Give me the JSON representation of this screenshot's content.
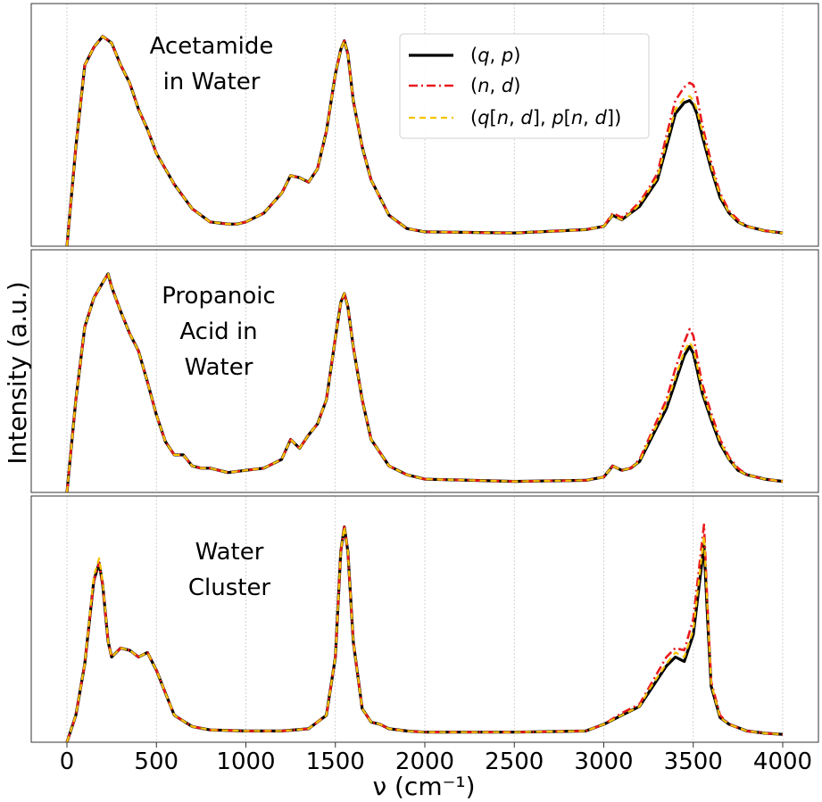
{
  "chart_data": {
    "type": "line",
    "xlabel": "ν (cm⁻¹)",
    "ylabel": "Intensity (a.u.)",
    "xlim": [
      -200,
      4200
    ],
    "x_ticks": [
      0,
      500,
      1000,
      1500,
      2000,
      2500,
      3000,
      3500,
      4000
    ],
    "x_tick_labels": [
      "0",
      "500",
      "1000",
      "1500",
      "2000",
      "2500",
      "3000",
      "3500",
      "4000"
    ],
    "grid": true,
    "legend_location": "top-right of first panel",
    "series_styles": [
      {
        "name": "(q, p)",
        "color": "#000000",
        "dash": "solid"
      },
      {
        "name": "(n, d)",
        "color": "#e8191e",
        "dash": "dashdot"
      },
      {
        "name": "(q[n, d], p[n, d])",
        "color": "#f5c400",
        "dash": "dashed"
      }
    ],
    "legend": [
      {
        "prefix": "(",
        "a": "q",
        "sep": ", ",
        "b": "p",
        "suffix": ")"
      },
      {
        "prefix": "(",
        "a": "n",
        "sep": ", ",
        "b": "d",
        "suffix": ")"
      },
      {
        "prefix": "(",
        "a": "q",
        "mid1": "[",
        "a2": "n",
        "mid2": ", ",
        "b2": "d",
        "mid3": "], ",
        "b": "p",
        "mid4": "[",
        "a3": "n",
        "mid5": ", ",
        "b3": "d",
        "suffix": "])"
      }
    ],
    "panels": [
      {
        "label_lines": [
          "Acetamide",
          "in Water"
        ],
        "ylim": [
          0,
          1.05
        ],
        "x": [
          0,
          50,
          100,
          150,
          200,
          250,
          300,
          350,
          400,
          450,
          500,
          600,
          700,
          800,
          900,
          950,
          1000,
          1100,
          1200,
          1250,
          1300,
          1350,
          1400,
          1450,
          1500,
          1530,
          1550,
          1570,
          1600,
          1650,
          1700,
          1800,
          1900,
          2000,
          2500,
          2900,
          3000,
          3050,
          3100,
          3150,
          3200,
          3250,
          3300,
          3350,
          3400,
          3450,
          3480,
          3500,
          3520,
          3550,
          3600,
          3650,
          3700,
          3750,
          3800,
          3900,
          4000
        ],
        "series": [
          {
            "name": "(q, p)",
            "values": [
              0.0,
              0.45,
              0.82,
              0.9,
              0.95,
              0.92,
              0.82,
              0.74,
              0.62,
              0.53,
              0.42,
              0.28,
              0.17,
              0.11,
              0.1,
              0.1,
              0.11,
              0.15,
              0.24,
              0.32,
              0.31,
              0.29,
              0.35,
              0.52,
              0.78,
              0.89,
              0.93,
              0.87,
              0.66,
              0.45,
              0.3,
              0.14,
              0.08,
              0.065,
              0.06,
              0.075,
              0.09,
              0.14,
              0.12,
              0.15,
              0.18,
              0.24,
              0.3,
              0.45,
              0.6,
              0.65,
              0.66,
              0.64,
              0.6,
              0.5,
              0.35,
              0.22,
              0.15,
              0.11,
              0.09,
              0.07,
              0.06
            ]
          },
          {
            "name": "(n, d)",
            "values": [
              0.0,
              0.45,
              0.82,
              0.9,
              0.95,
              0.92,
              0.82,
              0.74,
              0.62,
              0.53,
              0.42,
              0.28,
              0.17,
              0.11,
              0.1,
              0.1,
              0.11,
              0.15,
              0.24,
              0.32,
              0.31,
              0.29,
              0.35,
              0.52,
              0.78,
              0.89,
              0.93,
              0.87,
              0.66,
              0.45,
              0.3,
              0.14,
              0.08,
              0.065,
              0.06,
              0.075,
              0.09,
              0.15,
              0.13,
              0.16,
              0.2,
              0.26,
              0.33,
              0.5,
              0.66,
              0.72,
              0.74,
              0.73,
              0.68,
              0.55,
              0.38,
              0.24,
              0.16,
              0.12,
              0.09,
              0.07,
              0.06
            ]
          },
          {
            "name": "(q[n, d], p[n, d])",
            "values": [
              0.0,
              0.45,
              0.82,
              0.9,
              0.95,
              0.92,
              0.82,
              0.74,
              0.62,
              0.53,
              0.42,
              0.28,
              0.17,
              0.11,
              0.1,
              0.1,
              0.11,
              0.15,
              0.24,
              0.32,
              0.31,
              0.29,
              0.35,
              0.52,
              0.78,
              0.89,
              0.93,
              0.87,
              0.66,
              0.45,
              0.3,
              0.14,
              0.08,
              0.065,
              0.06,
              0.075,
              0.09,
              0.14,
              0.12,
              0.15,
              0.19,
              0.25,
              0.31,
              0.47,
              0.62,
              0.67,
              0.68,
              0.66,
              0.62,
              0.52,
              0.36,
              0.23,
              0.15,
              0.11,
              0.09,
              0.07,
              0.06
            ]
          }
        ]
      },
      {
        "label_lines": [
          "Propanoic",
          "Acid in",
          "Water"
        ],
        "ylim": [
          0,
          1.05
        ],
        "x": [
          0,
          50,
          100,
          150,
          200,
          230,
          250,
          300,
          350,
          400,
          450,
          500,
          550,
          600,
          650,
          700,
          750,
          800,
          900,
          1000,
          1100,
          1200,
          1250,
          1300,
          1350,
          1400,
          1450,
          1500,
          1530,
          1550,
          1570,
          1600,
          1650,
          1700,
          1800,
          1900,
          2000,
          2500,
          2900,
          3000,
          3050,
          3100,
          3150,
          3200,
          3250,
          3300,
          3350,
          3400,
          3450,
          3480,
          3500,
          3520,
          3550,
          3600,
          3650,
          3700,
          3750,
          3800,
          3900,
          4000
        ],
        "series": [
          {
            "name": "(q, p)",
            "values": [
              0.0,
              0.42,
              0.75,
              0.88,
              0.95,
              0.99,
              0.93,
              0.82,
              0.72,
              0.64,
              0.5,
              0.35,
              0.23,
              0.17,
              0.17,
              0.12,
              0.11,
              0.11,
              0.09,
              0.1,
              0.11,
              0.15,
              0.24,
              0.2,
              0.26,
              0.31,
              0.42,
              0.7,
              0.86,
              0.9,
              0.84,
              0.66,
              0.42,
              0.24,
              0.12,
              0.08,
              0.06,
              0.05,
              0.055,
              0.07,
              0.12,
              0.1,
              0.11,
              0.14,
              0.22,
              0.3,
              0.38,
              0.5,
              0.62,
              0.66,
              0.63,
              0.56,
              0.45,
              0.33,
              0.22,
              0.15,
              0.1,
              0.08,
              0.06,
              0.05
            ]
          },
          {
            "name": "(n, d)",
            "values": [
              0.0,
              0.42,
              0.75,
              0.88,
              0.95,
              0.99,
              0.93,
              0.82,
              0.72,
              0.64,
              0.5,
              0.35,
              0.23,
              0.17,
              0.17,
              0.12,
              0.11,
              0.11,
              0.09,
              0.1,
              0.11,
              0.15,
              0.24,
              0.2,
              0.26,
              0.31,
              0.42,
              0.7,
              0.86,
              0.9,
              0.84,
              0.66,
              0.42,
              0.24,
              0.12,
              0.08,
              0.06,
              0.05,
              0.055,
              0.07,
              0.12,
              0.1,
              0.11,
              0.15,
              0.24,
              0.33,
              0.42,
              0.56,
              0.68,
              0.74,
              0.71,
              0.62,
              0.49,
              0.36,
              0.24,
              0.16,
              0.11,
              0.08,
              0.06,
              0.05
            ]
          },
          {
            "name": "(q[n, d], p[n, d])",
            "values": [
              0.0,
              0.42,
              0.75,
              0.88,
              0.95,
              0.99,
              0.93,
              0.82,
              0.72,
              0.64,
              0.5,
              0.35,
              0.23,
              0.17,
              0.17,
              0.12,
              0.11,
              0.11,
              0.09,
              0.1,
              0.11,
              0.15,
              0.24,
              0.2,
              0.26,
              0.31,
              0.42,
              0.7,
              0.86,
              0.9,
              0.84,
              0.66,
              0.42,
              0.24,
              0.12,
              0.08,
              0.06,
              0.05,
              0.055,
              0.07,
              0.12,
              0.1,
              0.11,
              0.14,
              0.23,
              0.31,
              0.4,
              0.52,
              0.64,
              0.68,
              0.65,
              0.58,
              0.46,
              0.34,
              0.23,
              0.15,
              0.1,
              0.08,
              0.06,
              0.05
            ]
          }
        ]
      },
      {
        "label_lines": [
          "Water",
          "Cluster"
        ],
        "ylim": [
          0,
          1.05
        ],
        "x": [
          0,
          50,
          100,
          150,
          180,
          200,
          230,
          250,
          300,
          350,
          400,
          450,
          500,
          550,
          600,
          700,
          800,
          1000,
          1200,
          1350,
          1450,
          1500,
          1530,
          1550,
          1570,
          1600,
          1650,
          1700,
          1750,
          1800,
          1900,
          2000,
          2500,
          2900,
          3000,
          3100,
          3200,
          3250,
          3300,
          3350,
          3400,
          3450,
          3500,
          3530,
          3560,
          3580,
          3600,
          3650,
          3700,
          3800,
          3900,
          4000
        ],
        "series": [
          {
            "name": "(q, p)",
            "values": [
              0.0,
              0.12,
              0.35,
              0.72,
              0.8,
              0.7,
              0.45,
              0.38,
              0.42,
              0.41,
              0.38,
              0.4,
              0.32,
              0.22,
              0.12,
              0.07,
              0.055,
              0.05,
              0.05,
              0.06,
              0.12,
              0.38,
              0.85,
              0.96,
              0.85,
              0.45,
              0.15,
              0.09,
              0.08,
              0.06,
              0.05,
              0.045,
              0.045,
              0.05,
              0.08,
              0.12,
              0.16,
              0.22,
              0.28,
              0.34,
              0.38,
              0.36,
              0.48,
              0.68,
              0.88,
              0.55,
              0.25,
              0.11,
              0.08,
              0.05,
              0.04,
              0.035
            ]
          },
          {
            "name": "(n, d)",
            "values": [
              0.0,
              0.12,
              0.35,
              0.72,
              0.8,
              0.7,
              0.45,
              0.38,
              0.42,
              0.41,
              0.38,
              0.4,
              0.32,
              0.22,
              0.12,
              0.07,
              0.055,
              0.05,
              0.05,
              0.06,
              0.12,
              0.38,
              0.85,
              0.96,
              0.85,
              0.45,
              0.15,
              0.09,
              0.08,
              0.06,
              0.05,
              0.045,
              0.045,
              0.05,
              0.08,
              0.13,
              0.17,
              0.24,
              0.31,
              0.38,
              0.42,
              0.41,
              0.55,
              0.76,
              0.97,
              0.6,
              0.27,
              0.12,
              0.08,
              0.05,
              0.04,
              0.035
            ]
          },
          {
            "name": "(q[n, d], p[n, d])",
            "values": [
              0.0,
              0.12,
              0.35,
              0.74,
              0.82,
              0.71,
              0.45,
              0.38,
              0.42,
              0.41,
              0.38,
              0.4,
              0.32,
              0.22,
              0.12,
              0.07,
              0.055,
              0.05,
              0.05,
              0.06,
              0.12,
              0.38,
              0.85,
              0.96,
              0.85,
              0.45,
              0.15,
              0.09,
              0.08,
              0.06,
              0.05,
              0.045,
              0.045,
              0.05,
              0.08,
              0.12,
              0.16,
              0.23,
              0.29,
              0.35,
              0.4,
              0.38,
              0.5,
              0.71,
              0.92,
              0.58,
              0.26,
              0.11,
              0.08,
              0.05,
              0.04,
              0.035
            ]
          }
        ]
      }
    ]
  }
}
